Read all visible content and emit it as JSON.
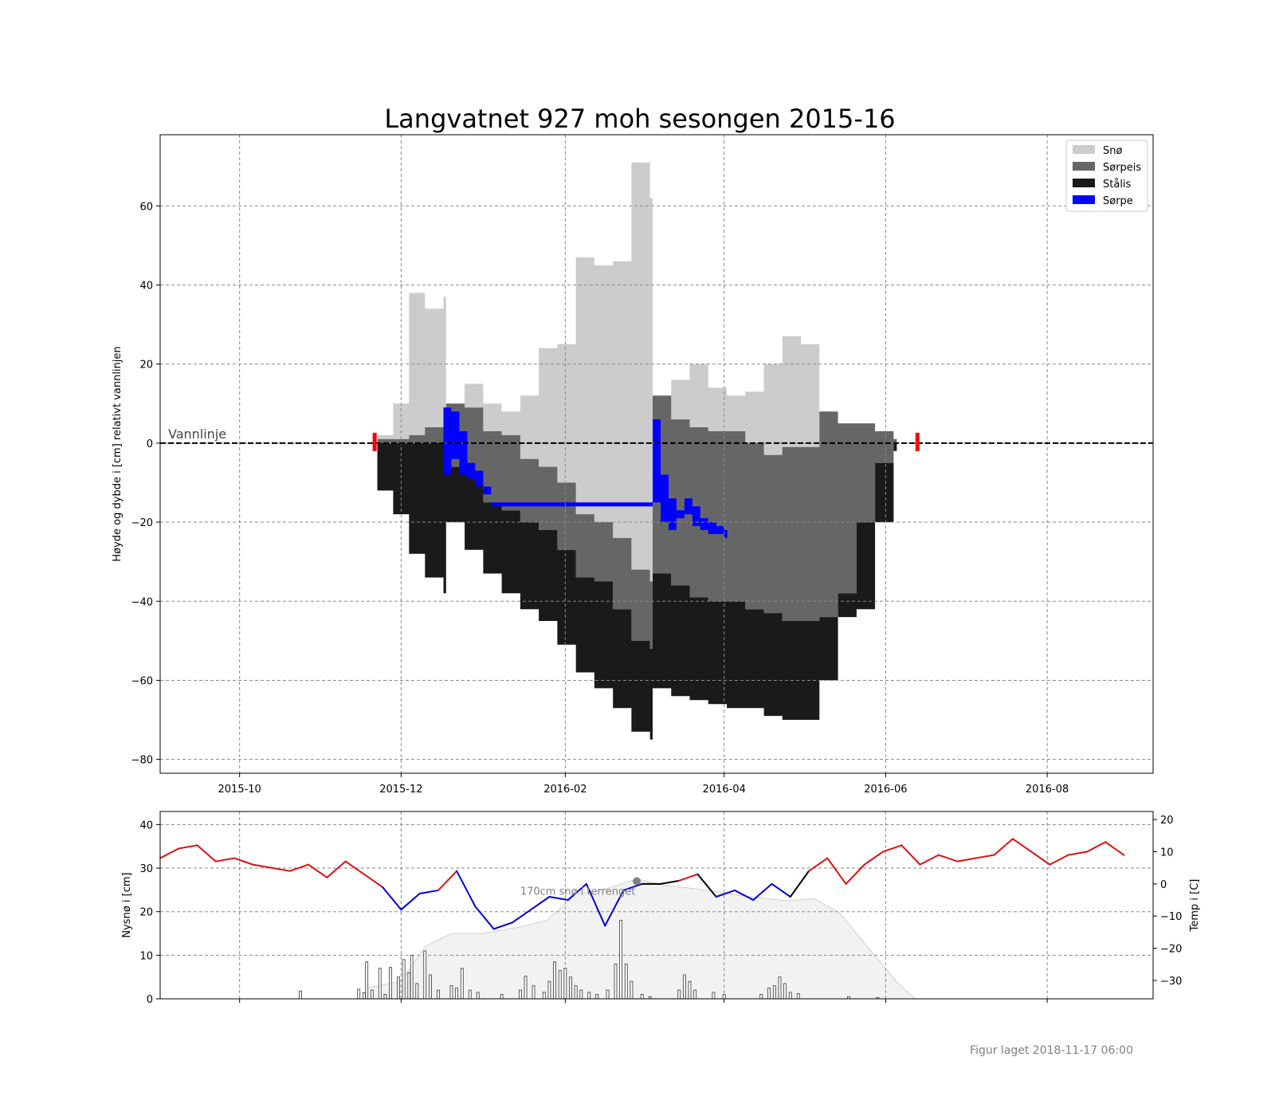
{
  "title": "Langvatnet 927 moh sesongen 2015-16",
  "caption": "Figur laget 2018-11-17 06:00",
  "colors": {
    "sno": "#cccccc",
    "sorpeis": "#666666",
    "stalis": "#1a1a1a",
    "sorpe": "#0000ff",
    "marker": "#ff0000",
    "temp_warm": "#dd1111",
    "temp_cold": "#0000dd",
    "temp_zero": "#000000",
    "terrain": "#f2f2f2",
    "annotation": "#808080"
  },
  "chart_data": [
    {
      "type": "area",
      "title": "Langvatnet 927 moh sesongen 2015-16",
      "ylabel": "Høyde og dybde i [cm] relativt vannlinjen",
      "xlim": [
        "2015-09-01",
        "2016-09-10"
      ],
      "ylim": [
        -83.5,
        78
      ],
      "x_ticks": [
        "2015-10",
        "2015-12",
        "2016-02",
        "2016-04",
        "2016-06",
        "2016-08"
      ],
      "y_ticks": [
        -80,
        -60,
        -40,
        -20,
        0,
        20,
        40,
        60
      ],
      "grid": true,
      "legend_position": "top-right",
      "water_line": {
        "y": 0,
        "label": "Vannlinje"
      },
      "ice_markers": [
        "2015-11-21",
        "2016-06-13"
      ],
      "legend": [
        {
          "key": "sno",
          "label": "Snø"
        },
        {
          "key": "sorpeis",
          "label": "Sørpeis"
        },
        {
          "key": "stalis",
          "label": "Stålis"
        },
        {
          "key": "sorpe",
          "label": "Sørpe"
        }
      ],
      "dates": [
        "2015-11-22",
        "2015-11-28",
        "2015-12-04",
        "2015-12-10",
        "2015-12-17",
        "2015-12-18",
        "2015-12-25",
        "2016-01-01",
        "2016-01-08",
        "2016-01-15",
        "2016-01-22",
        "2016-01-29",
        "2016-02-05",
        "2016-02-12",
        "2016-02-19",
        "2016-02-26",
        "2016-03-04",
        "2016-03-05",
        "2016-03-12",
        "2016-03-19",
        "2016-03-26",
        "2016-04-02",
        "2016-04-09",
        "2016-04-16",
        "2016-04-23",
        "2016-04-30",
        "2016-05-07",
        "2016-05-14",
        "2016-05-21",
        "2016-05-28",
        "2016-06-04"
      ],
      "series": [
        {
          "name": "Snø",
          "key": "sno",
          "top": [
            2,
            10,
            38,
            34,
            37,
            10,
            15,
            10,
            8,
            12,
            24,
            25,
            47,
            45,
            46,
            71,
            62,
            12,
            16,
            20,
            14,
            12,
            13,
            20,
            27,
            25,
            8,
            5,
            5,
            3,
            1
          ],
          "bottom": [
            1,
            1,
            2,
            4,
            6,
            10,
            9,
            3,
            2,
            -4,
            -6,
            -10,
            -18,
            -20,
            -24,
            -32,
            -35,
            12,
            6,
            4,
            3,
            3,
            0,
            -3,
            -1,
            -1,
            8,
            5,
            5,
            3,
            1
          ]
        },
        {
          "name": "Sørpeis",
          "key": "sorpeis",
          "top": [
            1,
            1,
            2,
            4,
            6,
            10,
            9,
            3,
            2,
            -4,
            -6,
            -10,
            -18,
            -20,
            -24,
            -32,
            -35,
            12,
            6,
            4,
            3,
            3,
            0,
            -3,
            -1,
            -1,
            8,
            5,
            5,
            3,
            1
          ],
          "bottom": [
            0,
            0,
            0,
            0,
            0,
            -6,
            -8,
            -15,
            -17,
            -20,
            -22,
            -27,
            -34,
            -35,
            -42,
            -50,
            -52,
            -33,
            -36,
            -39,
            -40,
            -40,
            -42,
            -43,
            -45,
            -45,
            -44,
            -38,
            -20,
            -5,
            0
          ]
        },
        {
          "name": "Stålis",
          "key": "stalis",
          "top": [
            0,
            0,
            0,
            0,
            0,
            -6,
            -8,
            -15,
            -17,
            -20,
            -22,
            -27,
            -34,
            -35,
            -42,
            -50,
            -52,
            -33,
            -36,
            -39,
            -40,
            -40,
            -42,
            -43,
            -45,
            -45,
            -44,
            -38,
            -20,
            -5,
            0
          ],
          "bottom": [
            -12,
            -18,
            -28,
            -34,
            -38,
            -20,
            -27,
            -33,
            -38,
            -42,
            -45,
            -51,
            -58,
            -62,
            -67,
            -73,
            -75,
            -62,
            -64,
            -65,
            -66,
            -67,
            -67,
            -69,
            -70,
            -70,
            -60,
            -44,
            -42,
            -20,
            -2
          ]
        },
        {
          "name": "Sørpe",
          "key": "sorpe",
          "dates": [
            "2015-12-17",
            "2015-12-20",
            "2015-12-23",
            "2015-12-26",
            "2015-12-29",
            "2016-01-01",
            "2016-01-04",
            "2016-03-05",
            "2016-03-08",
            "2016-03-11",
            "2016-03-14",
            "2016-03-17",
            "2016-03-20",
            "2016-03-23",
            "2016-03-26",
            "2016-03-29",
            "2016-04-01"
          ],
          "top": [
            9,
            8,
            3,
            -5,
            -7,
            -11,
            -15,
            6,
            -8,
            -14,
            -17,
            -14,
            -16,
            -19,
            -20,
            -21,
            -22
          ],
          "bottom": [
            -8,
            -4,
            -8,
            -9,
            -11,
            -13,
            -16,
            -15,
            -20,
            -22,
            -19,
            -18,
            -21,
            -22,
            -23,
            -23,
            -24
          ]
        }
      ]
    },
    {
      "type": "bar",
      "ylabel": "Nysnø i [cm]",
      "y2label": "Temp i [C]",
      "ylim": [
        0,
        43
      ],
      "y2lim": [
        -35.7,
        22.5
      ],
      "y_ticks": [
        0,
        10,
        20,
        30,
        40
      ],
      "y2_ticks": [
        -30,
        -20,
        -10,
        0,
        10,
        20
      ],
      "annotation": {
        "text": "170cm snø i terrenget",
        "date": "2016-02-28",
        "value": 27
      },
      "terrain_snow": {
        "dates": [
          "2015-11-18",
          "2015-12-01",
          "2015-12-10",
          "2015-12-20",
          "2016-01-01",
          "2016-01-15",
          "2016-01-25",
          "2016-02-05",
          "2016-02-15",
          "2016-02-28",
          "2016-03-10",
          "2016-03-25",
          "2016-04-10",
          "2016-04-25",
          "2016-05-05",
          "2016-05-15",
          "2016-05-25",
          "2016-06-05",
          "2016-06-12"
        ],
        "values": [
          2.5,
          4,
          12,
          15,
          15,
          16.5,
          18,
          24,
          25,
          27.5,
          26,
          25,
          23.5,
          22.5,
          23,
          19.5,
          12,
          4,
          0
        ]
      },
      "new_snow": [
        {
          "date": "2015-10-24",
          "value": 1.8
        },
        {
          "date": "2015-11-15",
          "value": 2.2
        },
        {
          "date": "2015-11-17",
          "value": 1.4
        },
        {
          "date": "2015-11-18",
          "value": 8.5
        },
        {
          "date": "2015-11-20",
          "value": 2
        },
        {
          "date": "2015-11-23",
          "value": 7
        },
        {
          "date": "2015-11-25",
          "value": 1
        },
        {
          "date": "2015-11-27",
          "value": 7.2
        },
        {
          "date": "2015-11-30",
          "value": 5
        },
        {
          "date": "2015-12-02",
          "value": 9
        },
        {
          "date": "2015-12-04",
          "value": 6
        },
        {
          "date": "2015-12-05",
          "value": 10
        },
        {
          "date": "2015-12-07",
          "value": 3.5
        },
        {
          "date": "2015-12-10",
          "value": 11
        },
        {
          "date": "2015-12-12",
          "value": 5.5
        },
        {
          "date": "2015-12-15",
          "value": 2
        },
        {
          "date": "2015-12-20",
          "value": 3
        },
        {
          "date": "2015-12-22",
          "value": 2.5
        },
        {
          "date": "2015-12-24",
          "value": 7
        },
        {
          "date": "2015-12-27",
          "value": 2
        },
        {
          "date": "2015-12-30",
          "value": 1.5
        },
        {
          "date": "2016-01-08",
          "value": 1
        },
        {
          "date": "2016-01-15",
          "value": 2
        },
        {
          "date": "2016-01-17",
          "value": 5.2
        },
        {
          "date": "2016-01-20",
          "value": 3
        },
        {
          "date": "2016-01-24",
          "value": 1.5
        },
        {
          "date": "2016-01-26",
          "value": 4
        },
        {
          "date": "2016-01-28",
          "value": 8.5
        },
        {
          "date": "2016-01-30",
          "value": 6.5
        },
        {
          "date": "2016-02-01",
          "value": 7
        },
        {
          "date": "2016-02-03",
          "value": 5
        },
        {
          "date": "2016-02-05",
          "value": 3
        },
        {
          "date": "2016-02-07",
          "value": 2
        },
        {
          "date": "2016-02-10",
          "value": 1.5
        },
        {
          "date": "2016-02-13",
          "value": 1
        },
        {
          "date": "2016-02-17",
          "value": 2
        },
        {
          "date": "2016-02-20",
          "value": 8
        },
        {
          "date": "2016-02-22",
          "value": 18
        },
        {
          "date": "2016-02-24",
          "value": 8
        },
        {
          "date": "2016-02-26",
          "value": 4
        },
        {
          "date": "2016-03-01",
          "value": 1
        },
        {
          "date": "2016-03-04",
          "value": 0.5
        },
        {
          "date": "2016-03-15",
          "value": 2
        },
        {
          "date": "2016-03-17",
          "value": 5.5
        },
        {
          "date": "2016-03-19",
          "value": 4
        },
        {
          "date": "2016-03-21",
          "value": 2
        },
        {
          "date": "2016-03-28",
          "value": 1.5
        },
        {
          "date": "2016-04-01",
          "value": 1
        },
        {
          "date": "2016-04-15",
          "value": 1
        },
        {
          "date": "2016-04-18",
          "value": 2.5
        },
        {
          "date": "2016-04-20",
          "value": 3
        },
        {
          "date": "2016-04-22",
          "value": 5
        },
        {
          "date": "2016-04-24",
          "value": 3.5
        },
        {
          "date": "2016-04-26",
          "value": 1.5
        },
        {
          "date": "2016-04-29",
          "value": 1.2
        },
        {
          "date": "2016-05-18",
          "value": 0.5
        },
        {
          "date": "2016-05-29",
          "value": 0.3
        }
      ],
      "temperature": {
        "dates": [
          "2015-09-01",
          "2015-09-08",
          "2015-09-15",
          "2015-09-22",
          "2015-09-29",
          "2015-10-06",
          "2015-10-13",
          "2015-10-20",
          "2015-10-27",
          "2015-11-03",
          "2015-11-10",
          "2015-11-17",
          "2015-11-24",
          "2015-12-01",
          "2015-12-08",
          "2015-12-15",
          "2015-12-22",
          "2015-12-29",
          "2016-01-05",
          "2016-01-12",
          "2016-01-19",
          "2016-01-26",
          "2016-02-02",
          "2016-02-09",
          "2016-02-16",
          "2016-02-23",
          "2016-03-01",
          "2016-03-08",
          "2016-03-15",
          "2016-03-22",
          "2016-03-29",
          "2016-04-05",
          "2016-04-12",
          "2016-04-19",
          "2016-04-26",
          "2016-05-03",
          "2016-05-10",
          "2016-05-17",
          "2016-05-24",
          "2016-05-31",
          "2016-06-07",
          "2016-06-14",
          "2016-06-21",
          "2016-06-28",
          "2016-07-05",
          "2016-07-12",
          "2016-07-19",
          "2016-07-26",
          "2016-08-02",
          "2016-08-09",
          "2016-08-16",
          "2016-08-23",
          "2016-08-30"
        ],
        "values": [
          8,
          11,
          12,
          7,
          8,
          6,
          5,
          4,
          6,
          2,
          7,
          3,
          -1,
          -8,
          -3,
          -2,
          4,
          -7,
          -14,
          -12,
          -8,
          -4,
          -5,
          0,
          -13,
          -2,
          0,
          0,
          1,
          3,
          -4,
          -2,
          -5,
          0,
          -4,
          4,
          8,
          0,
          6,
          10,
          12,
          6,
          9,
          7,
          8,
          9,
          14,
          10,
          6,
          9,
          10,
          13,
          9
        ]
      }
    }
  ]
}
